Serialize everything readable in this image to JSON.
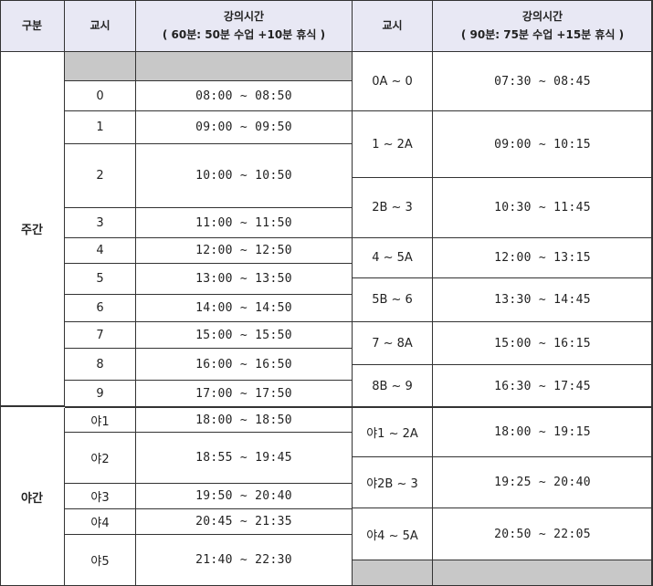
{
  "header": {
    "section": "구분",
    "period": "교시",
    "time_title": "강의시간",
    "time_sub_left": "( 60분: 50분 수업 +10분 휴식 )",
    "period_right": "교시",
    "time_title_right": "강의시간",
    "time_sub_right": "( 90분: 75분 수업 +15분 휴식 )"
  },
  "sections": {
    "day": "주간",
    "night": "야간"
  },
  "left": [
    {
      "period": "",
      "time": "",
      "gray": true
    },
    {
      "period": "0",
      "time": "08:00 ~ 08:50"
    },
    {
      "period": "1",
      "time": "09:00 ~ 09:50"
    },
    {
      "period": "2",
      "time": "10:00 ~ 10:50"
    },
    {
      "period": "3",
      "time": "11:00 ~ 11:50"
    },
    {
      "period": "4",
      "time": "12:00 ~ 12:50"
    },
    {
      "period": "5",
      "time": "13:00 ~ 13:50"
    },
    {
      "period": "6",
      "time": "14:00 ~ 14:50"
    },
    {
      "period": "7",
      "time": "15:00 ~ 15:50"
    },
    {
      "period": "8",
      "time": "16:00 ~ 16:50"
    },
    {
      "period": "9",
      "time": "17:00 ~ 17:50"
    },
    {
      "period": "야1",
      "time": "18:00 ~ 18:50"
    },
    {
      "period": "야2",
      "time": "18:55 ~ 19:45"
    },
    {
      "period": "야3",
      "time": "19:50 ~ 20:40"
    },
    {
      "period": "야4",
      "time": "20:45 ~ 21:35"
    },
    {
      "period": "야5",
      "time": "21:40 ~ 22:30"
    }
  ],
  "right": [
    {
      "period": "0A ~ 0",
      "time": "07:30 ~ 08:45"
    },
    {
      "period": "1 ~ 2A",
      "time": "09:00 ~ 10:15"
    },
    {
      "period": "2B ~ 3",
      "time": "10:30 ~ 11:45"
    },
    {
      "period": "4 ~ 5A",
      "time": "12:00 ~ 13:15"
    },
    {
      "period": "5B ~ 6",
      "time": "13:30 ~ 14:45"
    },
    {
      "period": "7 ~ 8A",
      "time": "15:00 ~ 16:15"
    },
    {
      "period": "8B ~ 9",
      "time": "16:30 ~ 17:45"
    },
    {
      "period": "야1 ~ 2A",
      "time": "18:00 ~ 19:15"
    },
    {
      "period": "야2B ~ 3",
      "time": "19:25 ~ 20:40"
    },
    {
      "period": "야4 ~ 5A",
      "time": "20:50 ~ 22:05"
    },
    {
      "period": "",
      "time": "",
      "gray": true
    }
  ]
}
